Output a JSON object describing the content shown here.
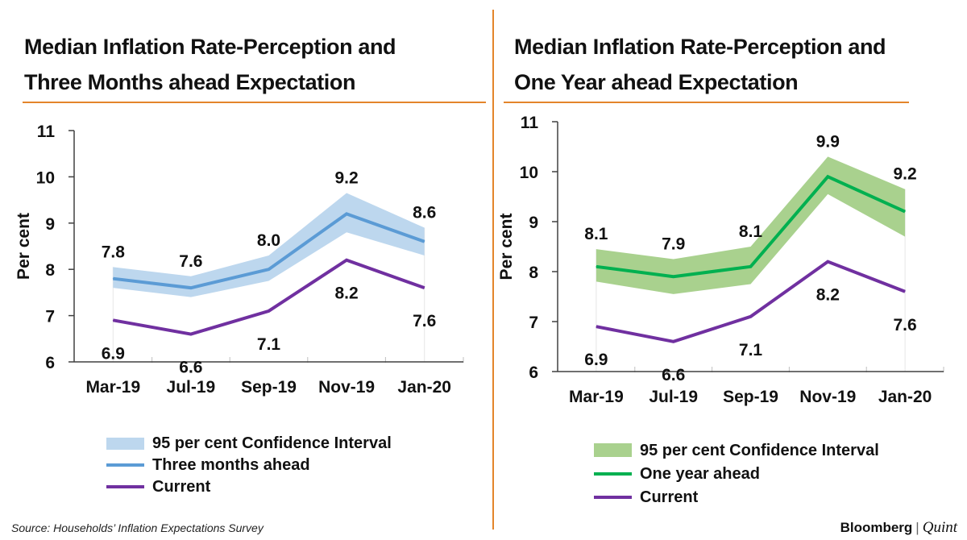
{
  "colors": {
    "accent_rule": "#e3852b",
    "current_line": "#7030a0",
    "left_line": "#5b9bd5",
    "left_band": "#bdd7ee",
    "right_line": "#00b050",
    "right_band": "#a9d18e"
  },
  "chart_data": [
    {
      "type": "line",
      "title_lines": [
        "Median Inflation Rate-Perception and",
        "Three Months ahead Expectation"
      ],
      "categories": [
        "Mar-19",
        "Jul-19",
        "Sep-19",
        "Nov-19",
        "Jan-20"
      ],
      "ylabel": "Per cent",
      "ylim": [
        6,
        11
      ],
      "yticks": [
        "6",
        "7",
        "8",
        "9",
        "10",
        "11"
      ],
      "series": [
        {
          "name": "Three months ahead",
          "values": [
            7.8,
            7.6,
            8.0,
            9.2,
            8.6
          ],
          "labels": [
            "7.8",
            "7.6",
            "8.0",
            "9.2",
            "8.6"
          ]
        },
        {
          "name": "Current",
          "values": [
            6.9,
            6.6,
            7.1,
            8.2,
            7.6
          ],
          "labels": [
            "6.9",
            "6.6",
            "7.1",
            "8.2",
            "7.6"
          ]
        }
      ],
      "band": {
        "name": "95 per cent Confidence Interval",
        "lower": [
          7.6,
          7.4,
          7.75,
          8.8,
          8.3
        ],
        "upper": [
          8.05,
          7.85,
          8.3,
          9.65,
          8.9
        ]
      },
      "legend": [
        "95 per cent Confidence Interval",
        "Three months ahead",
        "Current"
      ]
    },
    {
      "type": "line",
      "title_lines": [
        "Median Inflation Rate-Perception and",
        "One Year ahead Expectation"
      ],
      "categories": [
        "Mar-19",
        "Jul-19",
        "Sep-19",
        "Nov-19",
        "Jan-20"
      ],
      "ylabel": "Per cent",
      "ylim": [
        6,
        11
      ],
      "yticks": [
        "6",
        "7",
        "8",
        "9",
        "10",
        "11"
      ],
      "series": [
        {
          "name": "One year ahead",
          "values": [
            8.1,
            7.9,
            8.1,
            9.9,
            9.2
          ],
          "labels": [
            "8.1",
            "7.9",
            "8.1",
            "9.9",
            "9.2"
          ]
        },
        {
          "name": "Current",
          "values": [
            6.9,
            6.6,
            7.1,
            8.2,
            7.6
          ],
          "labels": [
            "6.9",
            "6.6",
            "7.1",
            "8.2",
            "7.6"
          ]
        }
      ],
      "band": {
        "name": "95 per cent Confidence Interval",
        "lower": [
          7.8,
          7.55,
          7.75,
          9.55,
          8.7
        ],
        "upper": [
          8.45,
          8.25,
          8.5,
          10.3,
          9.65
        ]
      },
      "legend": [
        "95 per cent Confidence Interval",
        "One year ahead",
        "Current"
      ]
    }
  ],
  "footer": {
    "source": "Source: Households’ Inflation Expectations Survey",
    "brand_left": "Bloomberg",
    "brand_sep": "|",
    "brand_right": "Quint"
  }
}
